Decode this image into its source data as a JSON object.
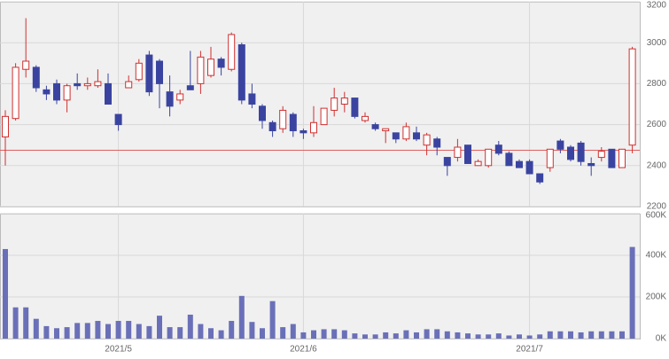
{
  "chart_data": {
    "type": "candlestick",
    "categories": [
      null,
      null,
      null,
      null,
      null,
      null,
      null,
      null,
      null,
      null,
      null,
      "2021/5",
      null,
      null,
      null,
      null,
      null,
      null,
      null,
      null,
      null,
      null,
      null,
      null,
      null,
      null,
      null,
      null,
      null,
      "2021/6",
      null,
      null,
      null,
      null,
      null,
      null,
      null,
      null,
      null,
      null,
      null,
      null,
      null,
      null,
      null,
      null,
      null,
      null,
      null,
      null,
      null,
      "2021/7",
      null,
      null,
      null,
      null,
      null,
      null,
      null,
      null,
      null,
      null
    ],
    "open": [
      2540,
      2630,
      2870,
      2880,
      2770,
      2800,
      2720,
      2800,
      2790,
      2790,
      2800,
      2650,
      2780,
      2820,
      2940,
      2910,
      2760,
      2720,
      2790,
      2800,
      2840,
      2920,
      2870,
      2990,
      2750,
      2690,
      2610,
      2580,
      2650,
      2570,
      2560,
      2600,
      2670,
      2700,
      2730,
      2620,
      2600,
      2570,
      2560,
      2530,
      2560,
      2500,
      2530,
      2440,
      2440,
      2500,
      2400,
      2400,
      2500,
      2460,
      2420,
      2420,
      2360,
      2390,
      2520,
      2490,
      2510,
      2410,
      2440,
      2480,
      2390,
      2500
    ],
    "high": [
      2670,
      2900,
      3120,
      2890,
      2790,
      2820,
      2800,
      2850,
      2830,
      2870,
      2850,
      2650,
      2840,
      2920,
      2960,
      2920,
      2840,
      2770,
      2960,
      2960,
      2980,
      2930,
      3050,
      3000,
      2800,
      2700,
      2620,
      2690,
      2660,
      2580,
      2690,
      2680,
      2780,
      2760,
      2730,
      2660,
      2610,
      2580,
      2560,
      2610,
      2590,
      2560,
      2540,
      2440,
      2530,
      2500,
      2430,
      2480,
      2520,
      2470,
      2430,
      2430,
      2360,
      2480,
      2530,
      2500,
      2520,
      2440,
      2490,
      2480,
      2480,
      2980
    ],
    "low": [
      2400,
      2620,
      2830,
      2760,
      2720,
      2700,
      2660,
      2770,
      2770,
      2780,
      2700,
      2570,
      2780,
      2810,
      2740,
      2680,
      2640,
      2700,
      2770,
      2750,
      2830,
      2840,
      2860,
      2700,
      2680,
      2580,
      2540,
      2560,
      2540,
      2530,
      2540,
      2600,
      2640,
      2660,
      2630,
      2610,
      2570,
      2510,
      2510,
      2520,
      2520,
      2450,
      2450,
      2350,
      2420,
      2410,
      2400,
      2390,
      2450,
      2400,
      2390,
      2360,
      2310,
      2370,
      2460,
      2420,
      2400,
      2350,
      2420,
      2390,
      2390,
      2460
    ],
    "close": [
      2640,
      2880,
      2910,
      2780,
      2750,
      2720,
      2790,
      2790,
      2800,
      2810,
      2700,
      2600,
      2810,
      2900,
      2760,
      2800,
      2690,
      2750,
      2770,
      2930,
      2920,
      2880,
      3040,
      2720,
      2700,
      2620,
      2570,
      2670,
      2570,
      2560,
      2610,
      2680,
      2730,
      2730,
      2640,
      2640,
      2580,
      2580,
      2530,
      2590,
      2530,
      2550,
      2490,
      2400,
      2490,
      2410,
      2420,
      2480,
      2460,
      2400,
      2390,
      2360,
      2320,
      2480,
      2480,
      2430,
      2420,
      2400,
      2470,
      2390,
      2480,
      2970
    ],
    "up_color": "#d03030",
    "down_color": "#3a44a0",
    "ylim": [
      2200,
      3200
    ],
    "yticks": [
      2200,
      2400,
      2600,
      2800,
      3000,
      3200
    ],
    "reference_line": 2475,
    "reference_color": "#e06060",
    "grid": true,
    "volume": {
      "color": "#6a70b8",
      "values": [
        430,
        150,
        150,
        95,
        60,
        50,
        55,
        75,
        75,
        85,
        70,
        85,
        85,
        70,
        60,
        110,
        55,
        55,
        115,
        70,
        50,
        40,
        85,
        205,
        80,
        50,
        180,
        55,
        70,
        30,
        40,
        45,
        45,
        40,
        25,
        20,
        20,
        30,
        25,
        40,
        30,
        45,
        45,
        35,
        30,
        25,
        20,
        20,
        25,
        15,
        20,
        15,
        20,
        35,
        35,
        35,
        30,
        35,
        35,
        35,
        35,
        440
      ],
      "ylim": [
        0,
        600
      ],
      "yticks": [
        {
          "value": 0,
          "label": "0K"
        },
        {
          "value": 200,
          "label": "200K"
        },
        {
          "value": 400,
          "label": "400K"
        },
        {
          "value": 600,
          "label": "600K"
        }
      ]
    }
  }
}
